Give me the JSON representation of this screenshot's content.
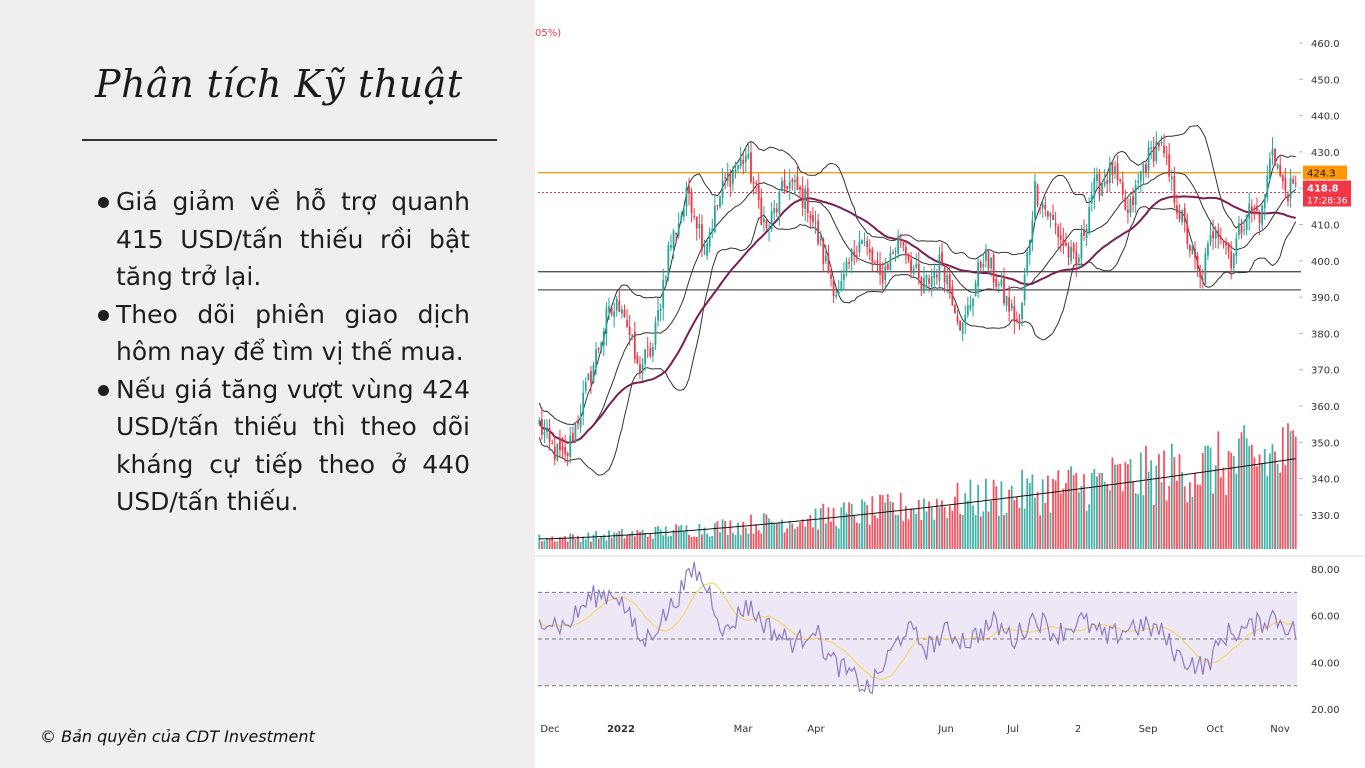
{
  "slide": {
    "title": "Phân tích Kỹ thuật",
    "bullets": [
      "Giá giảm về hỗ trợ quanh 415 USD/tấn thiếu rồi bật tăng trở lại.",
      "Theo dõi phiên giao dịch hôm nay để tìm vị thế mua.",
      "Nếu giá tăng vượt vùng 424 USD/tấn thiếu thì theo dõi kháng cự tiếp theo ở 440 USD/tấn thiếu."
    ],
    "copyright": "© Bản quyền của CDT Investment"
  },
  "chart_data": {
    "type": "candlestick",
    "top_label": "05%)",
    "price_axis": {
      "min": 320,
      "max": 460,
      "ticks": [
        "460.0",
        "450.0",
        "440.0",
        "430.0",
        "420.0",
        "410.0",
        "400.0",
        "390.0",
        "380.0",
        "370.0",
        "360.0",
        "350.0",
        "340.0",
        "330.0"
      ]
    },
    "price_labels": {
      "resistance": "424.3",
      "last_price": "418.8",
      "countdown": "17:28:36"
    },
    "horizontal_levels": [
      {
        "value": 424.3,
        "color": "#ff9800",
        "style": "solid"
      },
      {
        "value": 397,
        "color": "#555555",
        "style": "solid"
      },
      {
        "value": 392,
        "color": "#555555",
        "style": "solid"
      },
      {
        "value": 418.8,
        "color": "#f23645",
        "style": "dotted"
      }
    ],
    "x_ticks": [
      "Dec",
      "2022",
      "Mar",
      "Apr",
      "Jun",
      "Jul",
      "2",
      "Sep",
      "Oct",
      "Nov"
    ],
    "price_path_keypoints": [
      {
        "i": 0,
        "v": 355
      },
      {
        "i": 4,
        "v": 349
      },
      {
        "i": 10,
        "v": 345
      },
      {
        "i": 18,
        "v": 364
      },
      {
        "i": 26,
        "v": 384
      },
      {
        "i": 32,
        "v": 389
      },
      {
        "i": 38,
        "v": 370
      },
      {
        "i": 44,
        "v": 376
      },
      {
        "i": 50,
        "v": 403
      },
      {
        "i": 58,
        "v": 419
      },
      {
        "i": 64,
        "v": 404
      },
      {
        "i": 72,
        "v": 422
      },
      {
        "i": 80,
        "v": 429
      },
      {
        "i": 88,
        "v": 408
      },
      {
        "i": 96,
        "v": 422
      },
      {
        "i": 104,
        "v": 416
      },
      {
        "i": 110,
        "v": 401
      },
      {
        "i": 116,
        "v": 390
      },
      {
        "i": 124,
        "v": 407
      },
      {
        "i": 132,
        "v": 395
      },
      {
        "i": 140,
        "v": 407
      },
      {
        "i": 148,
        "v": 392
      },
      {
        "i": 156,
        "v": 400
      },
      {
        "i": 164,
        "v": 381
      },
      {
        "i": 172,
        "v": 402
      },
      {
        "i": 180,
        "v": 390
      },
      {
        "i": 186,
        "v": 382
      },
      {
        "i": 192,
        "v": 420
      },
      {
        "i": 200,
        "v": 409
      },
      {
        "i": 208,
        "v": 398
      },
      {
        "i": 214,
        "v": 419
      },
      {
        "i": 222,
        "v": 425
      },
      {
        "i": 228,
        "v": 412
      },
      {
        "i": 234,
        "v": 426
      },
      {
        "i": 240,
        "v": 433
      },
      {
        "i": 246,
        "v": 418
      },
      {
        "i": 252,
        "v": 404
      },
      {
        "i": 256,
        "v": 394
      },
      {
        "i": 262,
        "v": 411
      },
      {
        "i": 268,
        "v": 401
      },
      {
        "i": 274,
        "v": 414
      },
      {
        "i": 280,
        "v": 413
      },
      {
        "i": 284,
        "v": 432
      },
      {
        "i": 288,
        "v": 420
      },
      {
        "i": 293,
        "v": 419
      }
    ],
    "volume_trend": {
      "start": 0.08,
      "end": 0.72
    },
    "rsi": {
      "axis_ticks": [
        "80.00",
        "60.00",
        "40.00",
        "20.00"
      ],
      "min": 15,
      "max": 85,
      "upper_band": 70,
      "middle": 50,
      "lower_band": 30,
      "keypoints": [
        {
          "i": 0,
          "v": 60
        },
        {
          "i": 10,
          "v": 55
        },
        {
          "i": 20,
          "v": 68
        },
        {
          "i": 30,
          "v": 70
        },
        {
          "i": 40,
          "v": 48
        },
        {
          "i": 50,
          "v": 62
        },
        {
          "i": 60,
          "v": 80
        },
        {
          "i": 66,
          "v": 70
        },
        {
          "i": 72,
          "v": 52
        },
        {
          "i": 80,
          "v": 65
        },
        {
          "i": 86,
          "v": 58
        },
        {
          "i": 92,
          "v": 52
        },
        {
          "i": 100,
          "v": 48
        },
        {
          "i": 106,
          "v": 56
        },
        {
          "i": 112,
          "v": 42
        },
        {
          "i": 120,
          "v": 35
        },
        {
          "i": 128,
          "v": 28
        },
        {
          "i": 134,
          "v": 40
        },
        {
          "i": 142,
          "v": 55
        },
        {
          "i": 150,
          "v": 46
        },
        {
          "i": 158,
          "v": 53
        },
        {
          "i": 166,
          "v": 49
        },
        {
          "i": 176,
          "v": 57
        },
        {
          "i": 184,
          "v": 50
        },
        {
          "i": 192,
          "v": 60
        },
        {
          "i": 200,
          "v": 52
        },
        {
          "i": 210,
          "v": 58
        },
        {
          "i": 220,
          "v": 50
        },
        {
          "i": 230,
          "v": 56
        },
        {
          "i": 240,
          "v": 54
        },
        {
          "i": 248,
          "v": 42
        },
        {
          "i": 258,
          "v": 38
        },
        {
          "i": 266,
          "v": 52
        },
        {
          "i": 276,
          "v": 55
        },
        {
          "i": 284,
          "v": 60
        },
        {
          "i": 293,
          "v": 53
        }
      ]
    },
    "colors": {
      "up": "#26a69a",
      "down": "#f23645",
      "ma_slow": "#7b1f4f",
      "ma_fast": "#333333",
      "rsi_line": "#8e7cc3",
      "rsi_signal": "#f5d76e",
      "rsi_band": "#ede7f6"
    }
  }
}
